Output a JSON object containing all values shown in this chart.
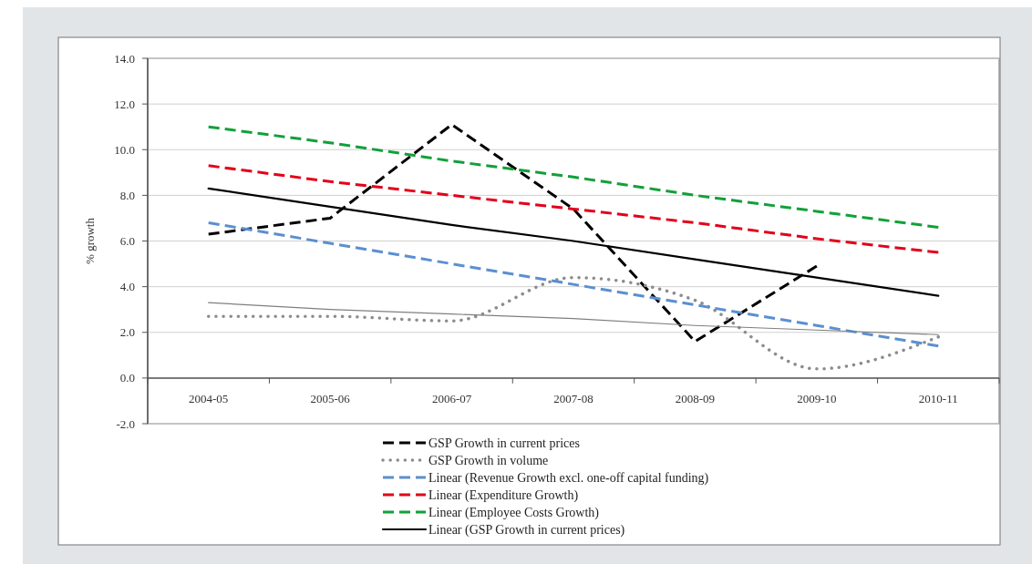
{
  "chart_data": {
    "type": "line",
    "ylabel": "% growth",
    "categories": [
      "2004-05",
      "2005-06",
      "2006-07",
      "2007-08",
      "2008-09",
      "2009-10",
      "2010-11"
    ],
    "ylim": [
      -2,
      14
    ],
    "yticks": [
      {
        "value": -2,
        "label": "-2.0"
      },
      {
        "value": 0,
        "label": "0.0"
      },
      {
        "value": 2,
        "label": "2.0"
      },
      {
        "value": 4,
        "label": "4.0"
      },
      {
        "value": 6,
        "label": "6.0"
      },
      {
        "value": 8,
        "label": "8.0"
      },
      {
        "value": 10,
        "label": "10.0"
      },
      {
        "value": 12,
        "label": "12.0"
      },
      {
        "value": 14,
        "label": "14.0"
      }
    ],
    "grid": "y",
    "legend": "bottom",
    "series": [
      {
        "name": "GSP Growth in current prices",
        "color": "#000000",
        "line_style": "dashed",
        "values": [
          6.3,
          7.0,
          11.1,
          7.4,
          1.6,
          4.9,
          null
        ]
      },
      {
        "name": "GSP Growth in volume",
        "color": "#8c8c8c",
        "line_style": "dotted",
        "values": [
          2.7,
          2.7,
          2.5,
          4.4,
          3.4,
          0.4,
          1.8
        ]
      },
      {
        "name": "Linear (Revenue Growth excl. one-off capital funding)",
        "color": "#5b8fd0",
        "line_style": "dashed",
        "values": [
          6.8,
          5.9,
          5.0,
          4.1,
          3.2,
          2.3,
          1.4
        ]
      },
      {
        "name": "Linear (Expenditure Growth)",
        "color": "#e3001b",
        "line_style": "dashed",
        "values": [
          9.3,
          8.6,
          8.0,
          7.4,
          6.8,
          6.1,
          5.5
        ]
      },
      {
        "name": "Linear (Employee Costs Growth)",
        "color": "#12a03a",
        "line_style": "dashed",
        "values": [
          11.0,
          10.3,
          9.5,
          8.8,
          8.0,
          7.3,
          6.6
        ]
      },
      {
        "name": "Linear (GSP Growth in current prices)",
        "color": "#000000",
        "line_style": "solid",
        "values": [
          8.3,
          7.5,
          6.7,
          6.0,
          5.2,
          4.4,
          3.6
        ]
      },
      {
        "color": "#7f7f7f",
        "line_style": "solid",
        "values": [
          3.3,
          3.0,
          2.8,
          2.6,
          2.3,
          2.1,
          1.9
        ]
      }
    ]
  }
}
